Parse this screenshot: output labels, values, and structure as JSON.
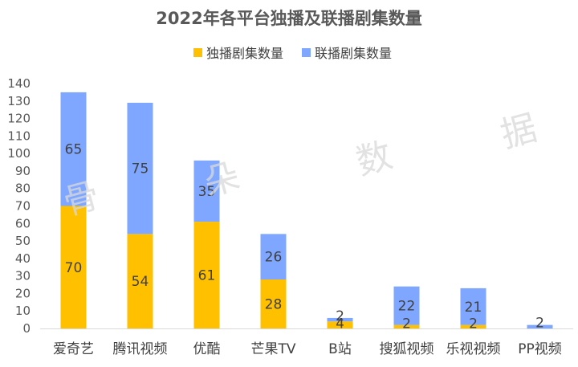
{
  "chart_data": {
    "type": "bar",
    "stacked": true,
    "title": "2022年各平台独播及联播剧集数量",
    "categories": [
      "爱奇艺",
      "腾讯视频",
      "优酷",
      "芒果TV",
      "B站",
      "搜狐视频",
      "乐视视频",
      "PP视频"
    ],
    "series": [
      {
        "name": "独播剧集数量",
        "values": [
          70,
          54,
          61,
          28,
          4,
          2,
          2,
          0
        ],
        "color": "#ffc000"
      },
      {
        "name": "联播剧集数量",
        "values": [
          65,
          75,
          35,
          26,
          2,
          22,
          21,
          2
        ],
        "color": "#7fa7ff"
      }
    ],
    "data_labels": [
      [
        "70",
        "54",
        "61",
        "28",
        "4",
        "2",
        "2",
        ""
      ],
      [
        "65",
        "75",
        "35",
        "26",
        "2",
        "22",
        "21",
        "2"
      ]
    ],
    "ylim": [
      0,
      140
    ],
    "yticks": [
      "0",
      "10",
      "20",
      "30",
      "40",
      "50",
      "60",
      "70",
      "80",
      "90",
      "100",
      "110",
      "120",
      "130",
      "140"
    ],
    "grid": false,
    "legend_position": "top",
    "watermark": [
      "骨",
      "朵",
      "数",
      "据"
    ]
  }
}
